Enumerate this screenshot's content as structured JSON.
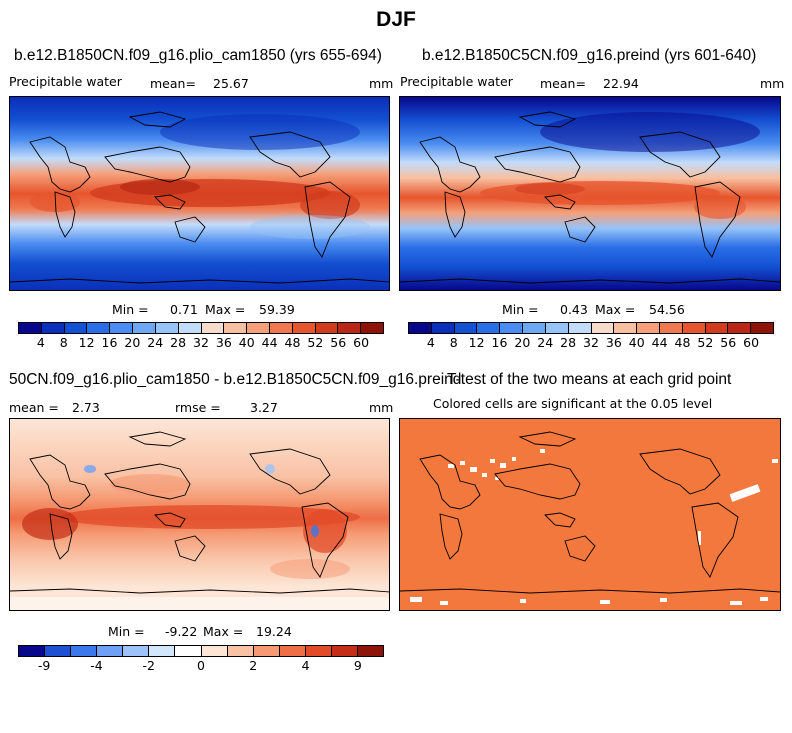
{
  "title": "DJF",
  "panels": {
    "p1": {
      "case_title": "b.e12.B1850CN.f09_g16.plio_cam1850 (yrs 655-694)",
      "field": "Precipitable water",
      "mean_label": "mean=",
      "mean_value": "25.67",
      "units": "mm",
      "min_label": "Min =",
      "min_value": "0.71",
      "max_label": "Max =",
      "max_value": "59.39"
    },
    "p2": {
      "case_title": "b.e12.B1850C5CN.f09_g16.preind (yrs 601-640)",
      "field": "Precipitable water",
      "mean_label": "mean=",
      "mean_value": "22.94",
      "units": "mm",
      "min_label": "Min =",
      "min_value": "0.43",
      "max_label": "Max =",
      "max_value": "54.56"
    },
    "p3": {
      "case_title": "50CN.f09_g16.plio_cam1850 - b.e12.B1850C5CN.f09_g16.preind",
      "mean_label": "mean =",
      "mean_value": "2.73",
      "rmse_label": "rmse =",
      "rmse_value": "3.27",
      "units": "mm",
      "min_label": "Min =",
      "min_value": "-9.22",
      "max_label": "Max =",
      "max_value": "19.24"
    },
    "p4": {
      "case_title": "T-test of the two means at each grid point",
      "subtitle": "Colored cells are significant at the 0.05 level"
    }
  },
  "colorbar_abs": {
    "colors": [
      "#08088c",
      "#0a2fb8",
      "#1450d2",
      "#2a6ee6",
      "#4a8cf0",
      "#6ea8f5",
      "#96c3f8",
      "#c3dcfa",
      "#f5dccb",
      "#f8c0a0",
      "#f5a07a",
      "#f07a50",
      "#e6552d",
      "#d23c1e",
      "#b82814",
      "#8c1409"
    ],
    "labels": [
      "4",
      "8",
      "12",
      "16",
      "20",
      "24",
      "28",
      "32",
      "36",
      "40",
      "44",
      "48",
      "52",
      "56",
      "60"
    ]
  },
  "colorbar_diff": {
    "colors": [
      "#08088c",
      "#1e50d2",
      "#3c78eb",
      "#6ea0f5",
      "#9ec3fa",
      "#d2e6fc",
      "#ffffff",
      "#fde6d6",
      "#f9c2a5",
      "#f59a73",
      "#ee6e46",
      "#e14b28",
      "#c42d16",
      "#8c1409"
    ],
    "labels": [
      "-9",
      "-4",
      "-2",
      "0",
      "2",
      "4",
      "9"
    ]
  },
  "ttest_fill_color": "#f3783d"
}
